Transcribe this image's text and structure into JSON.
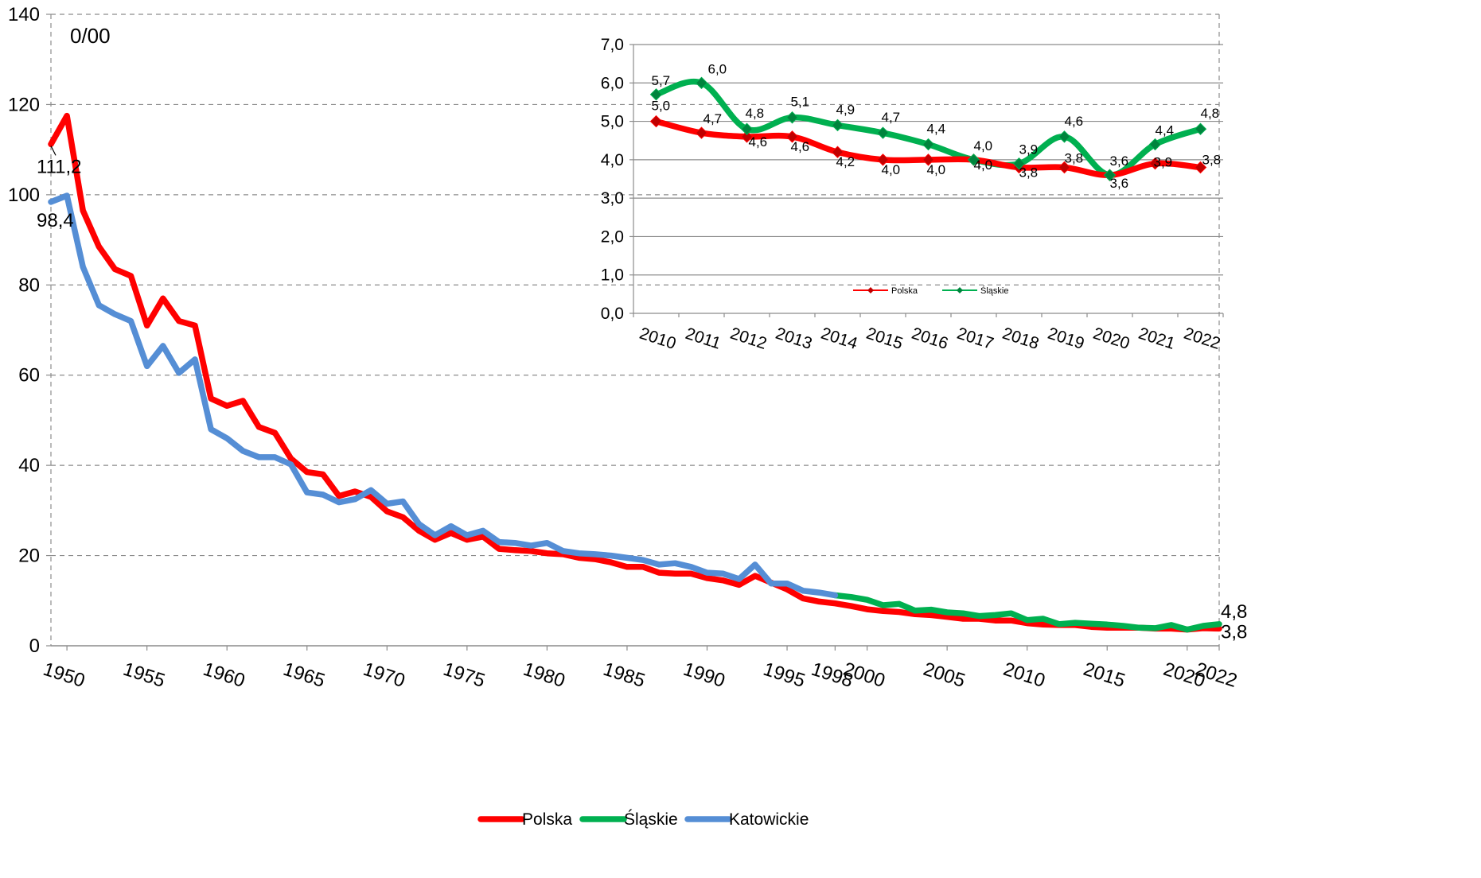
{
  "chart_data": [
    {
      "type": "line",
      "unit_label": "0/00",
      "ylim": [
        0,
        140
      ],
      "yticks": [
        "0",
        "20",
        "40",
        "60",
        "80",
        "100",
        "120",
        "140"
      ],
      "xlim": [
        1949,
        2022
      ],
      "xticks": [
        {
          "year": 1950,
          "label": "1950"
        },
        {
          "year": 1955,
          "label": "1955"
        },
        {
          "year": 1960,
          "label": "1960"
        },
        {
          "year": 1965,
          "label": "1965"
        },
        {
          "year": 1970,
          "label": "1970"
        },
        {
          "year": 1975,
          "label": "1975"
        },
        {
          "year": 1980,
          "label": "1980"
        },
        {
          "year": 1985,
          "label": "1985"
        },
        {
          "year": 1990,
          "label": "1990"
        },
        {
          "year": 1995,
          "label": "1995"
        },
        {
          "year": 1998,
          "label": "1998"
        },
        {
          "year": 2000,
          "label": "2000"
        },
        {
          "year": 2005,
          "label": "2005"
        },
        {
          "year": 2010,
          "label": "2010"
        },
        {
          "year": 2015,
          "label": "2015"
        },
        {
          "year": 2020,
          "label": "2020"
        },
        {
          "year": 2022,
          "label": "2022"
        }
      ],
      "grid": "horizontal-dashed",
      "legend_position": "bottom",
      "legend": [
        "Polska",
        "Śląskie",
        "Katowickie"
      ],
      "series": [
        {
          "name": "Polska",
          "color": "#ff0000",
          "x": [
            1949,
            1950,
            1951,
            1952,
            1953,
            1954,
            1955,
            1956,
            1957,
            1958,
            1959,
            1960,
            1961,
            1962,
            1963,
            1964,
            1965,
            1966,
            1967,
            1968,
            1969,
            1970,
            1971,
            1972,
            1973,
            1974,
            1975,
            1976,
            1977,
            1978,
            1979,
            1980,
            1981,
            1982,
            1983,
            1984,
            1985,
            1986,
            1987,
            1988,
            1989,
            1990,
            1991,
            1992,
            1993,
            1994,
            1995,
            1996,
            1997,
            1998,
            1999,
            2000,
            2001,
            2002,
            2003,
            2004,
            2005,
            2006,
            2007,
            2008,
            2009,
            2010,
            2011,
            2012,
            2013,
            2014,
            2015,
            2016,
            2017,
            2018,
            2019,
            2020,
            2021,
            2022
          ],
          "y": [
            111.2,
            117.5,
            96.5,
            88.5,
            83.5,
            82.0,
            71.0,
            77.0,
            72.0,
            71.0,
            54.8,
            53.2,
            54.3,
            48.5,
            47.2,
            41.5,
            38.5,
            38.0,
            33.2,
            34.2,
            33.0,
            29.8,
            28.5,
            25.5,
            23.5,
            25.0,
            23.5,
            24.2,
            21.5,
            21.2,
            21.0,
            20.5,
            20.3,
            19.5,
            19.2,
            18.5,
            17.5,
            17.5,
            16.2,
            16.0,
            16.0,
            15.0,
            14.5,
            13.5,
            15.5,
            14.0,
            12.5,
            10.5,
            9.8,
            9.4,
            8.8,
            8.1,
            7.7,
            7.5,
            7.0,
            6.8,
            6.4,
            6.0,
            6.0,
            5.6,
            5.6,
            5.0,
            4.7,
            4.6,
            4.6,
            4.2,
            4.0,
            4.0,
            4.0,
            3.8,
            3.8,
            3.6,
            3.9,
            3.8
          ]
        },
        {
          "name": "Śląskie",
          "color": "#00b050",
          "x": [
            1998,
            1999,
            2000,
            2001,
            2002,
            2003,
            2004,
            2005,
            2006,
            2007,
            2008,
            2009,
            2010,
            2011,
            2012,
            2013,
            2014,
            2015,
            2016,
            2017,
            2018,
            2019,
            2020,
            2021,
            2022
          ],
          "y": [
            11.2,
            10.8,
            10.2,
            9.0,
            9.3,
            7.8,
            8.0,
            7.4,
            7.2,
            6.6,
            6.8,
            7.2,
            5.7,
            6.0,
            4.8,
            5.1,
            4.9,
            4.7,
            4.4,
            4.0,
            3.9,
            4.6,
            3.6,
            4.4,
            4.8
          ]
        },
        {
          "name": "Katowickie",
          "color": "#558ed5",
          "x": [
            1949,
            1950,
            1951,
            1952,
            1953,
            1954,
            1955,
            1956,
            1957,
            1958,
            1959,
            1960,
            1961,
            1962,
            1963,
            1964,
            1965,
            1966,
            1967,
            1968,
            1969,
            1970,
            1971,
            1972,
            1973,
            1974,
            1975,
            1976,
            1977,
            1978,
            1979,
            1980,
            1981,
            1982,
            1983,
            1984,
            1985,
            1986,
            1987,
            1988,
            1989,
            1990,
            1991,
            1992,
            1993,
            1994,
            1995,
            1996,
            1997,
            1998
          ],
          "y": [
            98.4,
            99.8,
            84.0,
            75.5,
            73.5,
            72.0,
            62.0,
            66.5,
            60.5,
            63.5,
            48.0,
            46.0,
            43.2,
            41.8,
            41.8,
            40.2,
            34.0,
            33.5,
            31.8,
            32.5,
            34.5,
            31.5,
            32.0,
            27.0,
            24.5,
            26.5,
            24.5,
            25.5,
            23.0,
            22.8,
            22.2,
            22.8,
            21.0,
            20.5,
            20.3,
            20.0,
            19.5,
            19.0,
            18.0,
            18.3,
            17.5,
            16.2,
            16.0,
            14.8,
            18.0,
            13.8,
            13.8,
            12.2,
            11.8,
            11.2
          ]
        }
      ],
      "data_labels": [
        {
          "series": "Polska",
          "x": 1949,
          "text": "111,2"
        },
        {
          "series": "Katowickie",
          "x": 1949,
          "text": "98,4"
        },
        {
          "series": "Śląskie",
          "x": 2022,
          "text": "4,8"
        },
        {
          "series": "Polska",
          "x": 2022,
          "text": "3,8"
        }
      ]
    },
    {
      "type": "line",
      "ylim": [
        0,
        7
      ],
      "yticks": [
        "0,0",
        "1,0",
        "2,0",
        "3,0",
        "4,0",
        "5,0",
        "6,0",
        "7,0"
      ],
      "categories": [
        "2010",
        "2011",
        "2012",
        "2013",
        "2014",
        "2015",
        "2016",
        "2017",
        "2018",
        "2019",
        "2020",
        "2021",
        "2022"
      ],
      "grid": "horizontal-solid",
      "legend_position": "bottom-center",
      "legend": [
        "Polska",
        "Śląskie"
      ],
      "series": [
        {
          "name": "Polska",
          "color": "#ff0000",
          "values": [
            5.0,
            4.7,
            4.6,
            4.6,
            4.2,
            4.0,
            4.0,
            4.0,
            3.8,
            3.8,
            3.6,
            3.9,
            3.8
          ],
          "labels": [
            "5,0",
            "4,7",
            "4,6",
            "4,6",
            "4,2",
            "4,0",
            "4,0",
            "4,0",
            "3,8",
            "3,8",
            "3,6",
            "3,9",
            "3,8"
          ]
        },
        {
          "name": "Śląskie",
          "color": "#00b050",
          "values": [
            5.7,
            6.0,
            4.8,
            5.1,
            4.9,
            4.7,
            4.4,
            4.0,
            3.9,
            4.6,
            3.6,
            4.4,
            4.8
          ],
          "labels": [
            "5,7",
            "6,0",
            "4,8",
            "5,1",
            "4,9",
            "4,7",
            "4,4",
            "4,0",
            "3,9",
            "4,6",
            "3,6",
            "4,4",
            "4,8"
          ]
        }
      ]
    }
  ]
}
